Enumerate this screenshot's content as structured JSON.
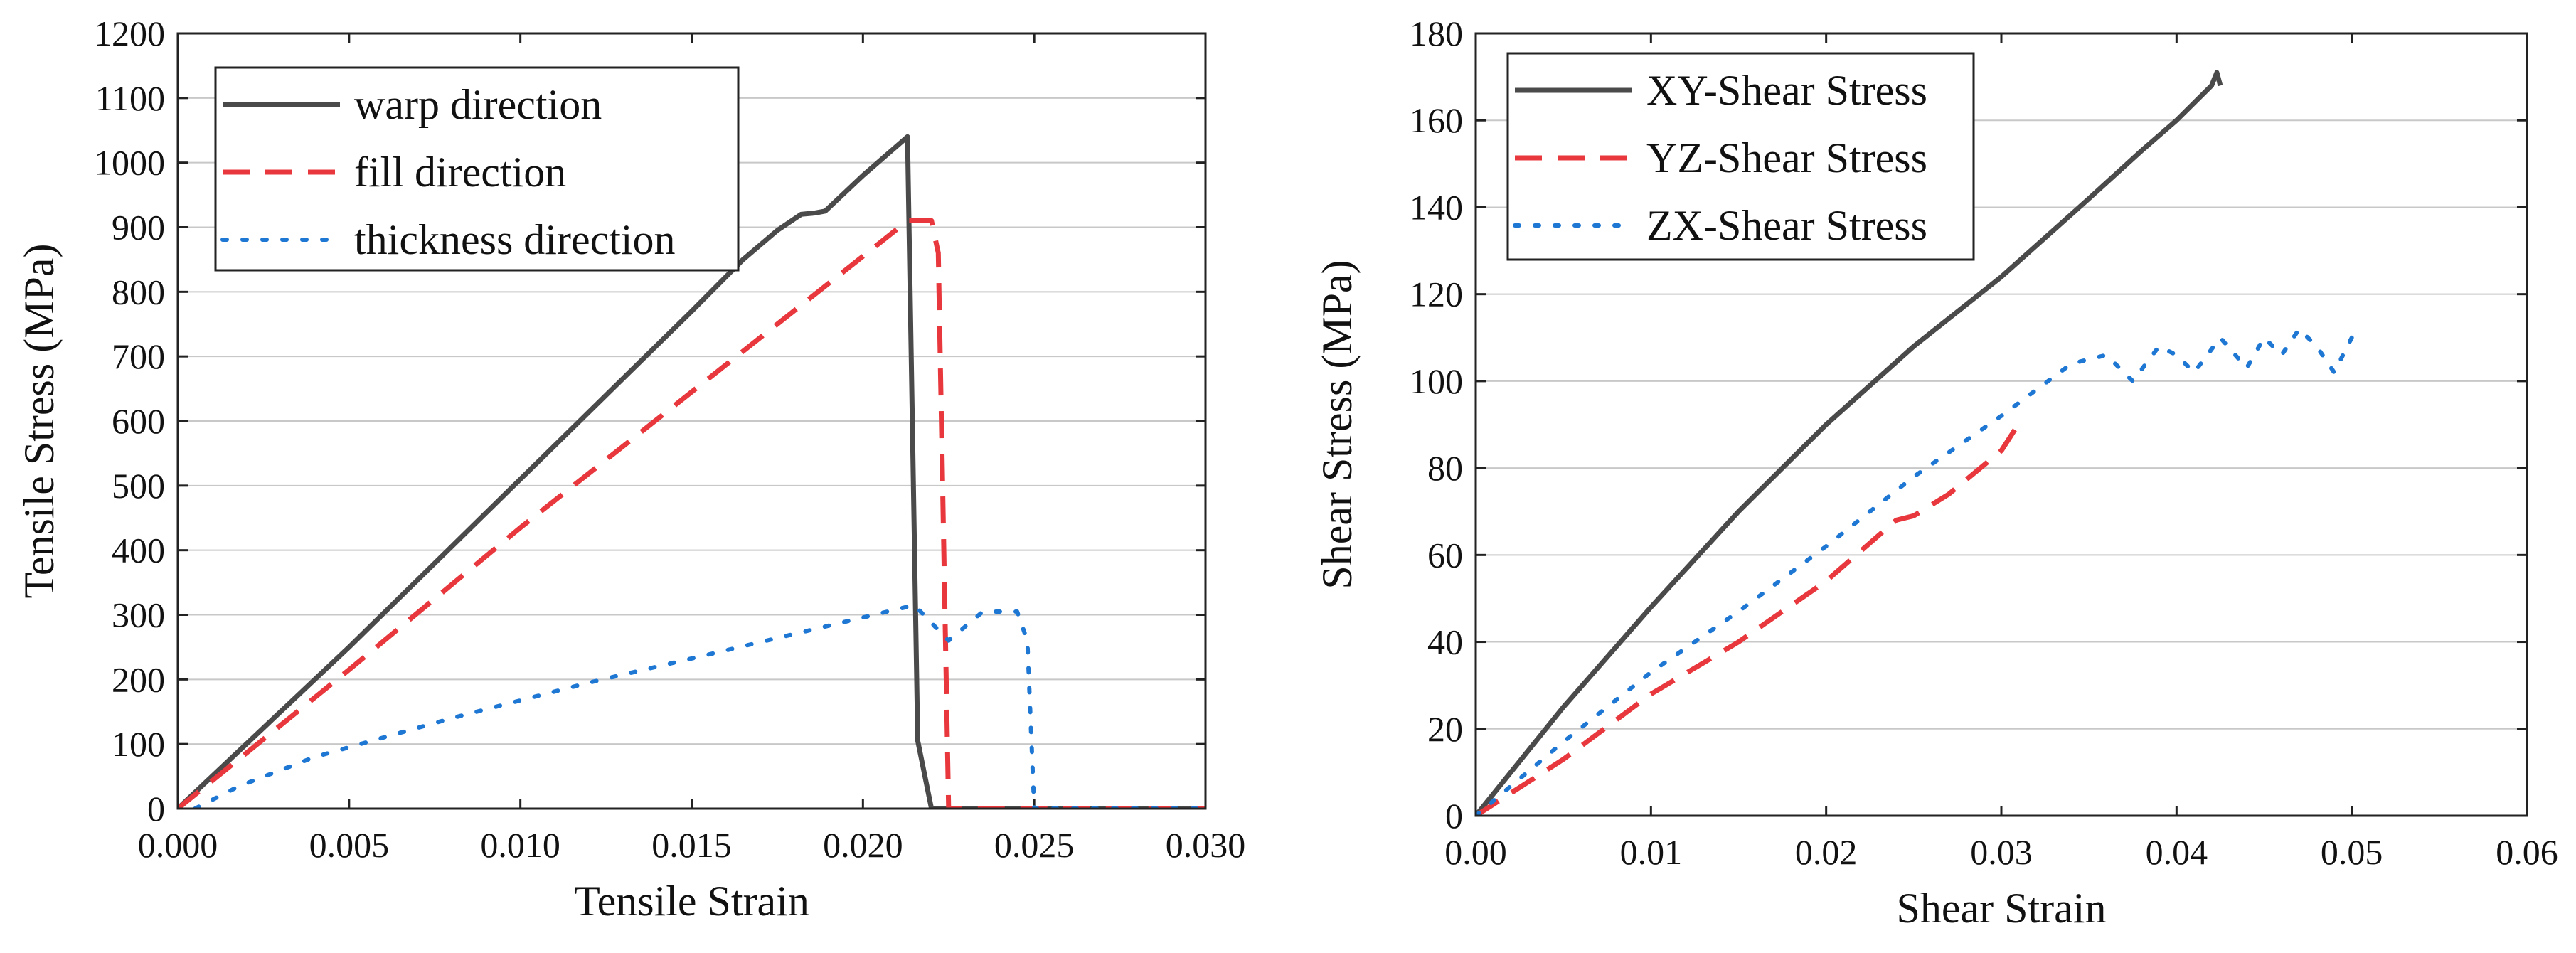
{
  "chart_data": [
    {
      "type": "line",
      "title": "",
      "xlabel": "Tensile Strain",
      "ylabel": "Tensile Stress (MPa)",
      "xlim": [
        0,
        0.03
      ],
      "ylim": [
        0,
        1200
      ],
      "xticks": [
        0.0,
        0.005,
        0.01,
        0.015,
        0.02,
        0.025,
        0.03
      ],
      "xtick_labels": [
        "0.000",
        "0.005",
        "0.010",
        "0.015",
        "0.020",
        "0.025",
        "0.030"
      ],
      "yticks": [
        0,
        100,
        200,
        300,
        400,
        500,
        600,
        700,
        800,
        900,
        1000,
        1100,
        1200
      ],
      "ytick_labels": [
        "0",
        "100",
        "200",
        "300",
        "400",
        "500",
        "600",
        "700",
        "800",
        "900",
        "1000",
        "1100",
        "1200"
      ],
      "grid": "horizontal",
      "legend_position": "top-left",
      "series": [
        {
          "name": "warp direction",
          "style": "solid",
          "color": "#4a4a4a",
          "x": [
            0,
            0.005,
            0.01,
            0.015,
            0.0165,
            0.0175,
            0.0182,
            0.0186,
            0.0189,
            0.02,
            0.0213,
            0.0216,
            0.022,
            0.0225,
            0.03
          ],
          "y": [
            0,
            250,
            510,
            770,
            850,
            895,
            920,
            922,
            925,
            980,
            1040,
            105,
            0,
            0,
            0
          ]
        },
        {
          "name": "fill direction",
          "style": "dashed",
          "color": "#e8383d",
          "x": [
            0,
            0.005,
            0.01,
            0.015,
            0.02,
            0.0213,
            0.022,
            0.0222,
            0.0225,
            0.03
          ],
          "y": [
            0,
            215,
            435,
            645,
            855,
            910,
            910,
            860,
            0,
            0
          ],
          "y_note": "last segment continues at 0"
        },
        {
          "name": "thickness direction",
          "style": "dotted",
          "color": "#1f77d4",
          "x": [
            0.0005,
            0.0018,
            0.004,
            0.008,
            0.012,
            0.016,
            0.0215,
            0.0225,
            0.0235,
            0.0245,
            0.0248,
            0.025,
            0.03
          ],
          "y": [
            0,
            35,
            80,
            140,
            195,
            245,
            315,
            260,
            305,
            305,
            260,
            0,
            0
          ]
        }
      ]
    },
    {
      "type": "line",
      "title": "",
      "xlabel": "Shear Strain",
      "ylabel": "Shear Stress (MPa)",
      "xlim": [
        0,
        0.06
      ],
      "ylim": [
        0,
        180
      ],
      "xticks": [
        0,
        0.01,
        0.02,
        0.03,
        0.04,
        0.05,
        0.06
      ],
      "xtick_labels": [
        "0.00",
        "0.01",
        "0.02",
        "0.03",
        "0.04",
        "0.05",
        "0.06"
      ],
      "yticks": [
        0,
        20,
        40,
        60,
        80,
        100,
        120,
        140,
        160,
        180
      ],
      "ytick_labels": [
        "0",
        "20",
        "40",
        "60",
        "80",
        "100",
        "120",
        "140",
        "160",
        "180"
      ],
      "grid": "horizontal",
      "legend_position": "top-left",
      "series": [
        {
          "name": "XY-Shear Stress",
          "style": "solid",
          "color": "#4a4a4a",
          "x": [
            0,
            0.005,
            0.01,
            0.015,
            0.02,
            0.025,
            0.03,
            0.035,
            0.038,
            0.04,
            0.042,
            0.0423,
            0.0425
          ],
          "y": [
            0,
            25,
            48,
            70,
            90,
            108,
            124,
            142,
            153,
            160,
            168,
            171,
            168
          ]
        },
        {
          "name": "YZ-Shear Stress",
          "style": "dashed",
          "color": "#e8383d",
          "x": [
            0,
            0.005,
            0.01,
            0.015,
            0.02,
            0.024,
            0.025,
            0.027,
            0.03,
            0.0308
          ],
          "y": [
            0,
            13,
            28,
            40,
            54,
            68,
            69,
            74,
            84,
            89
          ]
        },
        {
          "name": "ZX-Shear Stress",
          "style": "dotted",
          "color": "#1f77d4",
          "x": [
            0,
            0.005,
            0.01,
            0.015,
            0.02,
            0.025,
            0.03,
            0.034,
            0.036,
            0.0375,
            0.039,
            0.04,
            0.041,
            0.0425,
            0.044,
            0.045,
            0.046,
            0.047,
            0.048,
            0.049,
            0.05
          ],
          "y": [
            0,
            17,
            33,
            47,
            62,
            78,
            92,
            104,
            106,
            100,
            108,
            106,
            102,
            110,
            103,
            110,
            106,
            112,
            108,
            102,
            110
          ]
        }
      ]
    }
  ]
}
